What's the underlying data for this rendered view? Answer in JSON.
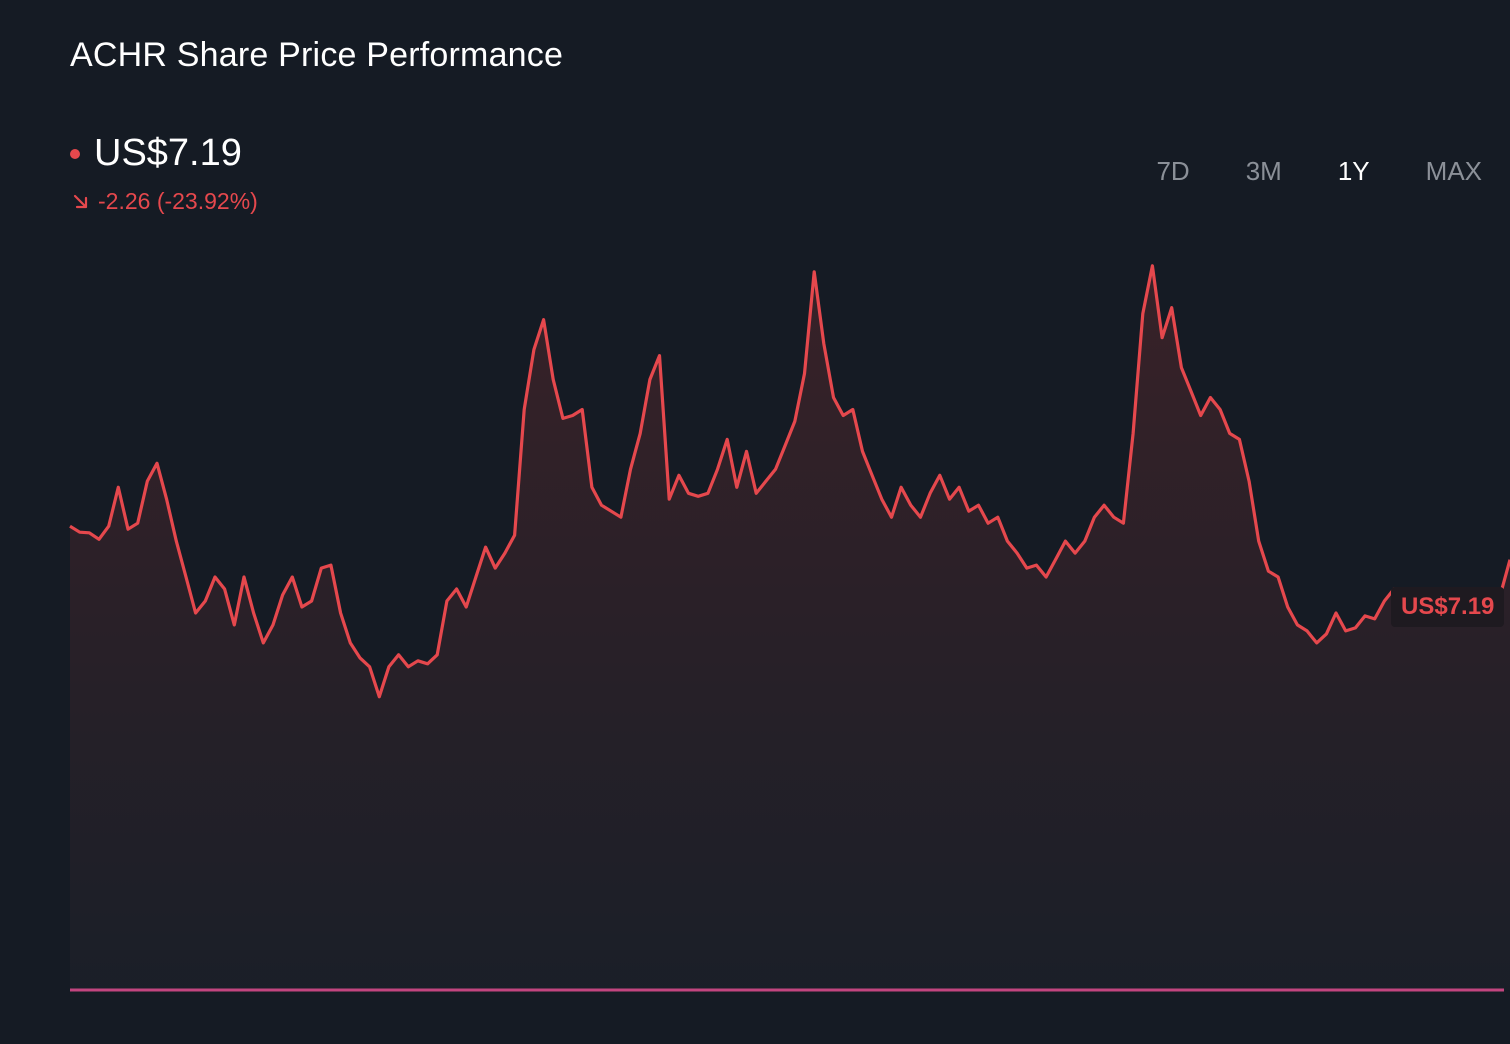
{
  "title": "ACHR Share Price Performance",
  "current_price": "US$7.19",
  "change": "-2.26 (-23.92%)",
  "icons": {
    "status_dot": "dot-icon",
    "change_arrow": "arrow-down-right-icon"
  },
  "periods": [
    {
      "label": "7D",
      "active": false
    },
    {
      "label": "3M",
      "active": false
    },
    {
      "label": "1Y",
      "active": true
    },
    {
      "label": "MAX",
      "active": false
    }
  ],
  "price_tag": "US$7.19",
  "colors": {
    "background": "#151b24",
    "line": "#e5484d",
    "baseline": "#c2457f",
    "fill_top": "#3a2228",
    "text": "#ffffff",
    "muted": "#8b9098"
  },
  "chart_data": {
    "type": "area",
    "series": [
      {
        "values": [
          7.75,
          7.65,
          7.64,
          7.53,
          7.75,
          8.4,
          7.7,
          7.8,
          8.5,
          8.8,
          8.2,
          7.5,
          6.9,
          6.3,
          6.5,
          6.9,
          6.7,
          6.1,
          6.9,
          6.3,
          5.8,
          6.1,
          6.6,
          6.9,
          6.4,
          6.5,
          7.05,
          7.1,
          6.3,
          5.8,
          5.55,
          5.4,
          4.9,
          5.4,
          5.6,
          5.4,
          5.5,
          5.45,
          5.6,
          6.5,
          6.7,
          6.4,
          6.9,
          7.4,
          7.05,
          7.3,
          7.6,
          9.7,
          10.7,
          11.2,
          10.2,
          9.55,
          9.6,
          9.7,
          8.4,
          8.1,
          8.0,
          7.9,
          8.7,
          9.3,
          10.2,
          10.6,
          8.2,
          8.6,
          8.3,
          8.25,
          8.3,
          8.7,
          9.2,
          8.4,
          9.0,
          8.3,
          8.5,
          8.7,
          9.1,
          9.5,
          10.3,
          12.0,
          10.8,
          9.9,
          9.6,
          9.7,
          9.0,
          8.6,
          8.2,
          7.9,
          8.4,
          8.1,
          7.9,
          8.3,
          8.6,
          8.2,
          8.4,
          8.0,
          8.1,
          7.8,
          7.9,
          7.5,
          7.3,
          7.05,
          7.1,
          6.9,
          7.2,
          7.5,
          7.3,
          7.5,
          7.9,
          8.1,
          7.9,
          7.8,
          9.3,
          11.3,
          12.1,
          10.9,
          11.4,
          10.4,
          10.0,
          9.6,
          9.9,
          9.7,
          9.3,
          9.2,
          8.5,
          7.5,
          7.0,
          6.9,
          6.4,
          6.1,
          6.0,
          5.8,
          5.95,
          6.3,
          6.0,
          6.05,
          6.25,
          6.2,
          6.5,
          6.7,
          6.5,
          6.45,
          6.5,
          6.7,
          6.4,
          6.2,
          6.5,
          6.5,
          6.65,
          6.7,
          6.6,
          7.19
        ]
      }
    ],
    "y_min": 0,
    "y_max": 13.2,
    "last_value": 7.19,
    "grid": false
  }
}
